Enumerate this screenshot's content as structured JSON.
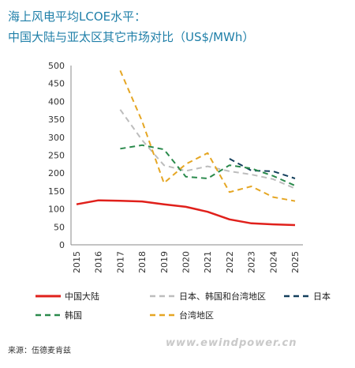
{
  "title_line1": "海上风电平均LCOE水平：",
  "title_line2": "中国大陆与亚太区其它市场对比（US$/MWh）",
  "source": "来源：伍德麦肯兹",
  "watermark": "www.ewindpower.cn",
  "chart_data": {
    "type": "line",
    "x": [
      2015,
      2016,
      2017,
      2018,
      2019,
      2020,
      2021,
      2022,
      2023,
      2024,
      2025
    ],
    "ylim": [
      0,
      500
    ],
    "yticks": [
      0,
      50,
      100,
      150,
      200,
      250,
      300,
      350,
      400,
      450,
      500
    ],
    "series": [
      {
        "name": "中国大陆",
        "color": "#e0201b",
        "dash": "none",
        "values": [
          113,
          124,
          123,
          121,
          113,
          106,
          92,
          71,
          60,
          57,
          55
        ]
      },
      {
        "name": "日本、韩国和台湾地区",
        "color": "#bdbdbd",
        "dash": "7,5",
        "values": [
          null,
          null,
          377,
          292,
          222,
          206,
          219,
          205,
          196,
          183,
          157
        ]
      },
      {
        "name": "日本",
        "color": "#133f5c",
        "dash": "7,5",
        "values": [
          null,
          null,
          null,
          null,
          null,
          null,
          null,
          240,
          207,
          205,
          185
        ]
      },
      {
        "name": "韩国",
        "color": "#2a8a4c",
        "dash": "7,5",
        "values": [
          null,
          null,
          268,
          278,
          266,
          190,
          185,
          222,
          213,
          192,
          165
        ]
      },
      {
        "name": "台湾地区",
        "color": "#e5a623",
        "dash": "7,5",
        "values": [
          null,
          null,
          486,
          345,
          172,
          225,
          256,
          147,
          163,
          133,
          122
        ]
      }
    ],
    "legend": [
      "中国大陆",
      "日本、韩国和台湾地区",
      "日本",
      "韩国",
      "台湾地区"
    ]
  }
}
